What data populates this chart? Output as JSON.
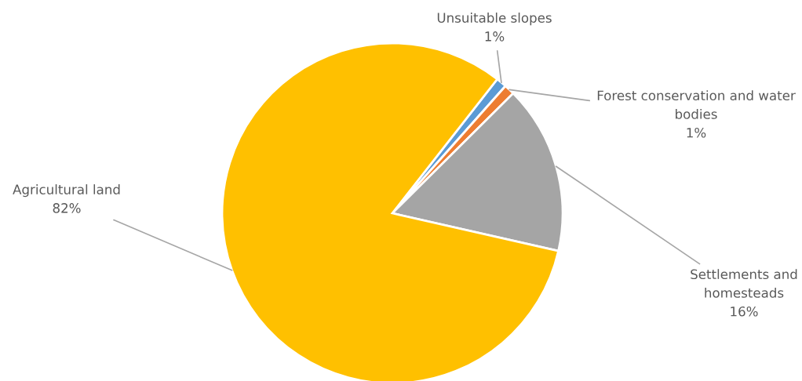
{
  "chart_data": {
    "type": "pie",
    "categories": [
      "Unsuitable slopes",
      "Forest conservation and water bodies",
      "Settlements and homesteads",
      "Agricultural land"
    ],
    "values": [
      1,
      1,
      16,
      82
    ],
    "colors": [
      "#5b9bd5",
      "#ed7d31",
      "#a5a5a5",
      "#ffc000"
    ],
    "value_labels": [
      "1%",
      "1%",
      "16%",
      "82%"
    ]
  }
}
